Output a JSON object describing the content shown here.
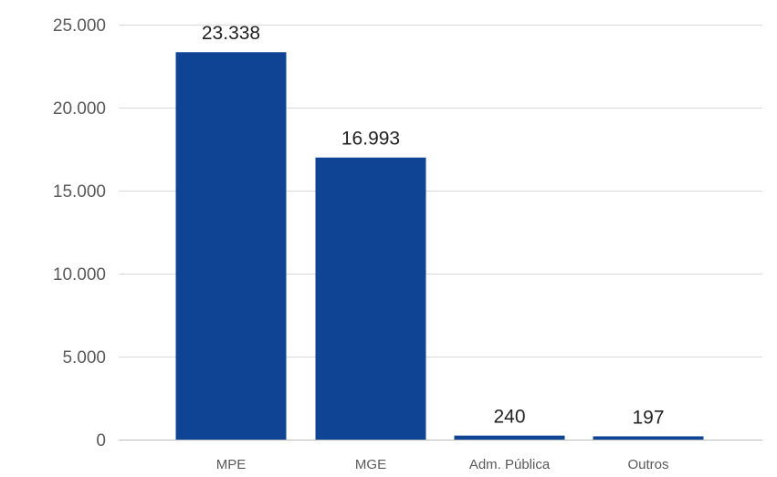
{
  "chart_data": {
    "type": "bar",
    "title": "",
    "xlabel": "",
    "ylabel": "",
    "categories": [
      "MPE",
      "MGE",
      "Adm. Pública",
      "Outros"
    ],
    "values": [
      23338,
      16993,
      240,
      197
    ],
    "value_labels": [
      "23.338",
      "16.993",
      "240",
      "197"
    ],
    "ylim": [
      0,
      25000
    ],
    "yticks": [
      0,
      5000,
      10000,
      15000,
      20000,
      25000
    ],
    "ytick_labels": [
      "0",
      "5.000",
      "10.000",
      "15.000",
      "20.000",
      "25.000"
    ],
    "grid": true,
    "legend": "none",
    "bar_color": "#0f4495"
  }
}
